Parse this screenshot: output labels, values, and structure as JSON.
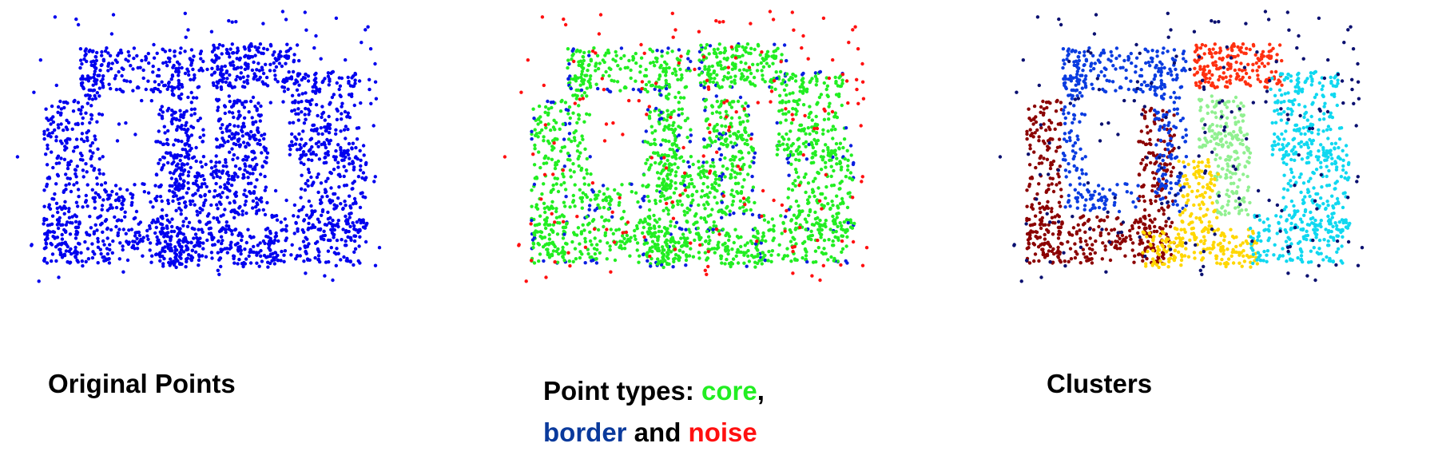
{
  "panels": {
    "original": {
      "caption": "Original Points"
    },
    "types": {
      "caption_line1_prefix": "Point types: ",
      "caption_core": "core",
      "caption_comma": ",",
      "caption_border": "border",
      "caption_and": " and ",
      "caption_noise": "noise"
    },
    "clusters": {
      "caption": "Clusters"
    }
  },
  "colors": {
    "original": "#0000ee",
    "core": "#22ee22",
    "border": "#0a1ee0",
    "noise": "#ff1010",
    "noise_cluster": "#0a1070",
    "border_word": "#0a3a9c",
    "cluster_colors": {
      "top-left-frame": "#0a3ce0",
      "top-right-bar": "#ff3010",
      "left-u": "#8b0000",
      "center-upper": "#90f090",
      "center-lower": "#ffd700",
      "right-s": "#10d8f0"
    }
  },
  "chart_data": [
    {
      "type": "scatter",
      "name": "original-points",
      "point_count": 2900
    },
    {
      "type": "scatter",
      "name": "point-types",
      "series": [
        {
          "name": "core"
        },
        {
          "name": "border"
        },
        {
          "name": "noise"
        }
      ]
    },
    {
      "type": "scatter",
      "name": "clusters",
      "cluster_count": 6
    }
  ]
}
